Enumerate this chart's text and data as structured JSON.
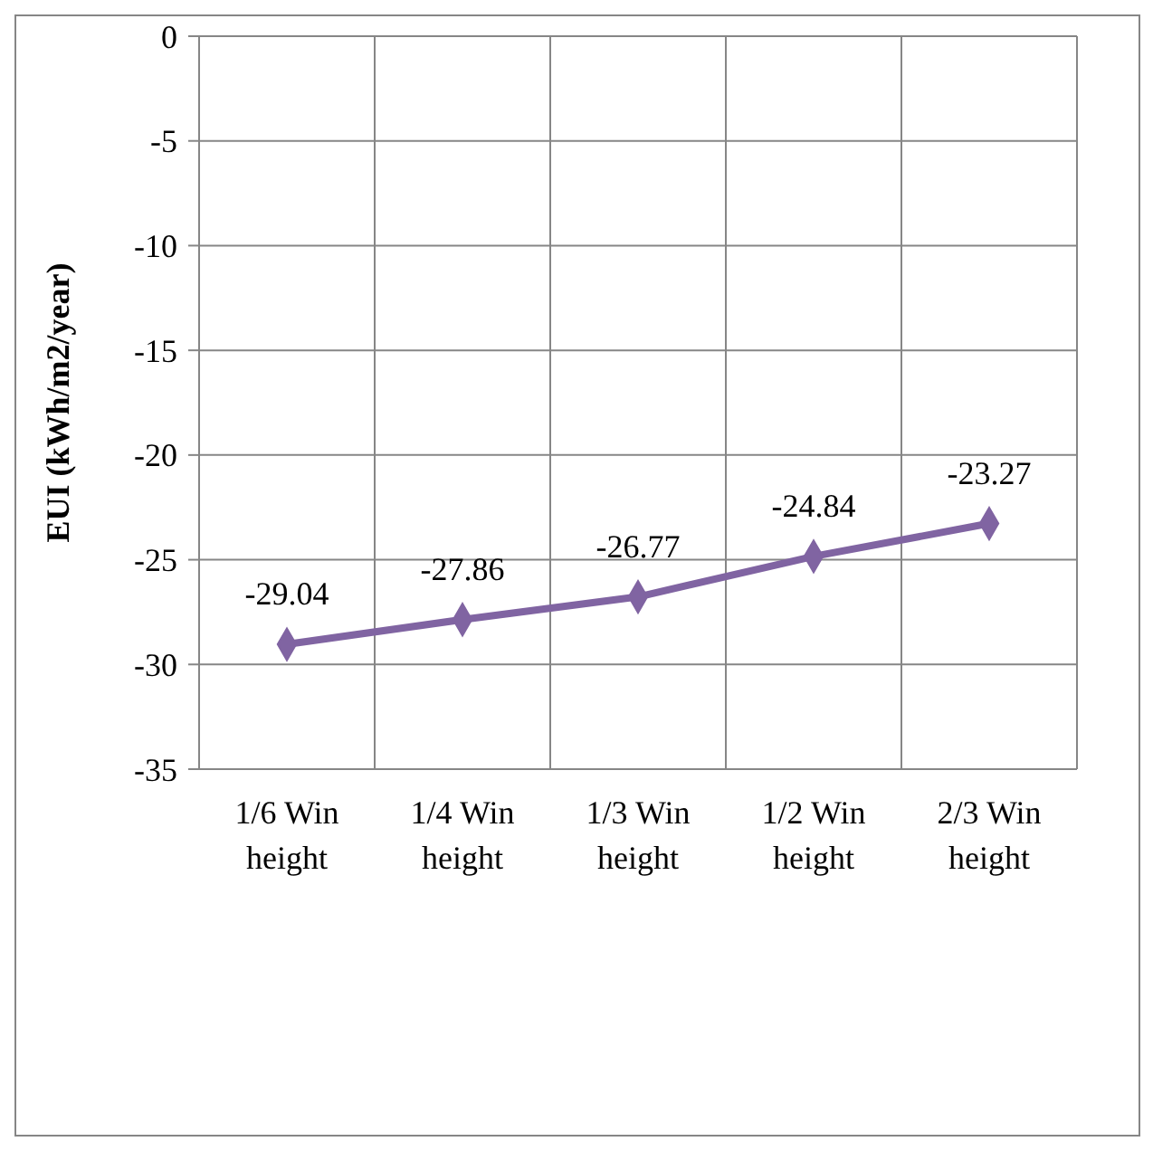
{
  "chart_data": {
    "type": "line",
    "ylabel": "EUI (kWh/m2/year)",
    "categories": [
      "1/6 Win height",
      "1/4 Win height",
      "1/3 Win height",
      "1/2 Win height",
      "2/3 Win height"
    ],
    "series": [
      {
        "color": "#8064a2",
        "values": [
          -29.04,
          -27.86,
          -26.77,
          -24.84,
          -23.27
        ]
      }
    ],
    "ylim": [
      -35,
      0
    ],
    "yticks": [
      -35,
      -30,
      -25,
      -20,
      -15,
      -10,
      -5,
      0
    ],
    "grid": true,
    "marker": "diamond",
    "line_style": "solid",
    "data_labels": true
  }
}
